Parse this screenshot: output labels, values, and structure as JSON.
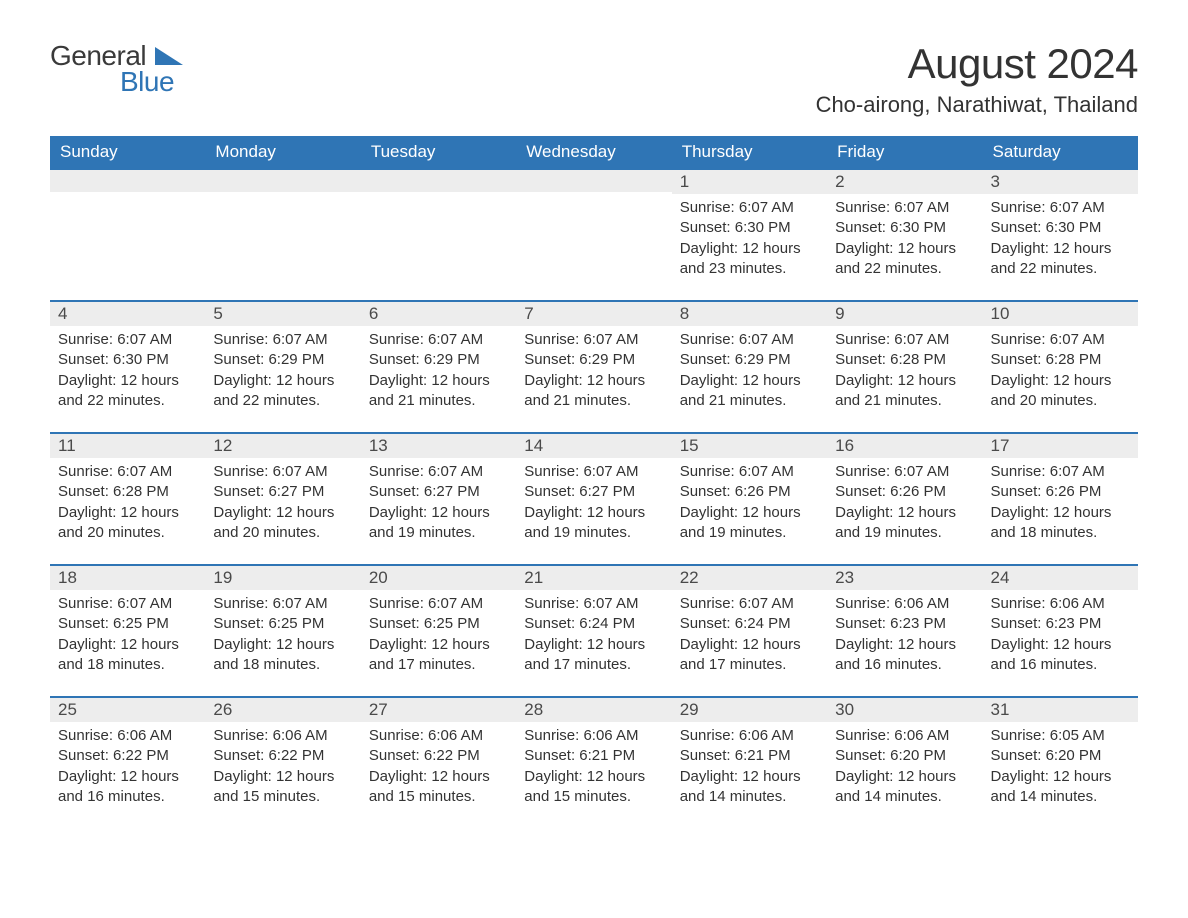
{
  "logo": {
    "word1": "General",
    "word2": "Blue"
  },
  "title": "August 2024",
  "location": "Cho-airong, Narathiwat, Thailand",
  "colors": {
    "header_bg": "#2f75b5",
    "header_text": "#ffffff",
    "daynum_bg": "#ededed",
    "row_border": "#2f75b5",
    "text": "#333333",
    "logo_blue": "#2f75b5"
  },
  "weekdays": [
    "Sunday",
    "Monday",
    "Tuesday",
    "Wednesday",
    "Thursday",
    "Friday",
    "Saturday"
  ],
  "weeks": [
    [
      null,
      null,
      null,
      null,
      {
        "n": "1",
        "sr": "6:07 AM",
        "ss": "6:30 PM",
        "dl": "12 hours and 23 minutes."
      },
      {
        "n": "2",
        "sr": "6:07 AM",
        "ss": "6:30 PM",
        "dl": "12 hours and 22 minutes."
      },
      {
        "n": "3",
        "sr": "6:07 AM",
        "ss": "6:30 PM",
        "dl": "12 hours and 22 minutes."
      }
    ],
    [
      {
        "n": "4",
        "sr": "6:07 AM",
        "ss": "6:30 PM",
        "dl": "12 hours and 22 minutes."
      },
      {
        "n": "5",
        "sr": "6:07 AM",
        "ss": "6:29 PM",
        "dl": "12 hours and 22 minutes."
      },
      {
        "n": "6",
        "sr": "6:07 AM",
        "ss": "6:29 PM",
        "dl": "12 hours and 21 minutes."
      },
      {
        "n": "7",
        "sr": "6:07 AM",
        "ss": "6:29 PM",
        "dl": "12 hours and 21 minutes."
      },
      {
        "n": "8",
        "sr": "6:07 AM",
        "ss": "6:29 PM",
        "dl": "12 hours and 21 minutes."
      },
      {
        "n": "9",
        "sr": "6:07 AM",
        "ss": "6:28 PM",
        "dl": "12 hours and 21 minutes."
      },
      {
        "n": "10",
        "sr": "6:07 AM",
        "ss": "6:28 PM",
        "dl": "12 hours and 20 minutes."
      }
    ],
    [
      {
        "n": "11",
        "sr": "6:07 AM",
        "ss": "6:28 PM",
        "dl": "12 hours and 20 minutes."
      },
      {
        "n": "12",
        "sr": "6:07 AM",
        "ss": "6:27 PM",
        "dl": "12 hours and 20 minutes."
      },
      {
        "n": "13",
        "sr": "6:07 AM",
        "ss": "6:27 PM",
        "dl": "12 hours and 19 minutes."
      },
      {
        "n": "14",
        "sr": "6:07 AM",
        "ss": "6:27 PM",
        "dl": "12 hours and 19 minutes."
      },
      {
        "n": "15",
        "sr": "6:07 AM",
        "ss": "6:26 PM",
        "dl": "12 hours and 19 minutes."
      },
      {
        "n": "16",
        "sr": "6:07 AM",
        "ss": "6:26 PM",
        "dl": "12 hours and 19 minutes."
      },
      {
        "n": "17",
        "sr": "6:07 AM",
        "ss": "6:26 PM",
        "dl": "12 hours and 18 minutes."
      }
    ],
    [
      {
        "n": "18",
        "sr": "6:07 AM",
        "ss": "6:25 PM",
        "dl": "12 hours and 18 minutes."
      },
      {
        "n": "19",
        "sr": "6:07 AM",
        "ss": "6:25 PM",
        "dl": "12 hours and 18 minutes."
      },
      {
        "n": "20",
        "sr": "6:07 AM",
        "ss": "6:25 PM",
        "dl": "12 hours and 17 minutes."
      },
      {
        "n": "21",
        "sr": "6:07 AM",
        "ss": "6:24 PM",
        "dl": "12 hours and 17 minutes."
      },
      {
        "n": "22",
        "sr": "6:07 AM",
        "ss": "6:24 PM",
        "dl": "12 hours and 17 minutes."
      },
      {
        "n": "23",
        "sr": "6:06 AM",
        "ss": "6:23 PM",
        "dl": "12 hours and 16 minutes."
      },
      {
        "n": "24",
        "sr": "6:06 AM",
        "ss": "6:23 PM",
        "dl": "12 hours and 16 minutes."
      }
    ],
    [
      {
        "n": "25",
        "sr": "6:06 AM",
        "ss": "6:22 PM",
        "dl": "12 hours and 16 minutes."
      },
      {
        "n": "26",
        "sr": "6:06 AM",
        "ss": "6:22 PM",
        "dl": "12 hours and 15 minutes."
      },
      {
        "n": "27",
        "sr": "6:06 AM",
        "ss": "6:22 PM",
        "dl": "12 hours and 15 minutes."
      },
      {
        "n": "28",
        "sr": "6:06 AM",
        "ss": "6:21 PM",
        "dl": "12 hours and 15 minutes."
      },
      {
        "n": "29",
        "sr": "6:06 AM",
        "ss": "6:21 PM",
        "dl": "12 hours and 14 minutes."
      },
      {
        "n": "30",
        "sr": "6:06 AM",
        "ss": "6:20 PM",
        "dl": "12 hours and 14 minutes."
      },
      {
        "n": "31",
        "sr": "6:05 AM",
        "ss": "6:20 PM",
        "dl": "12 hours and 14 minutes."
      }
    ]
  ],
  "labels": {
    "sunrise": "Sunrise:",
    "sunset": "Sunset:",
    "daylight": "Daylight:"
  }
}
